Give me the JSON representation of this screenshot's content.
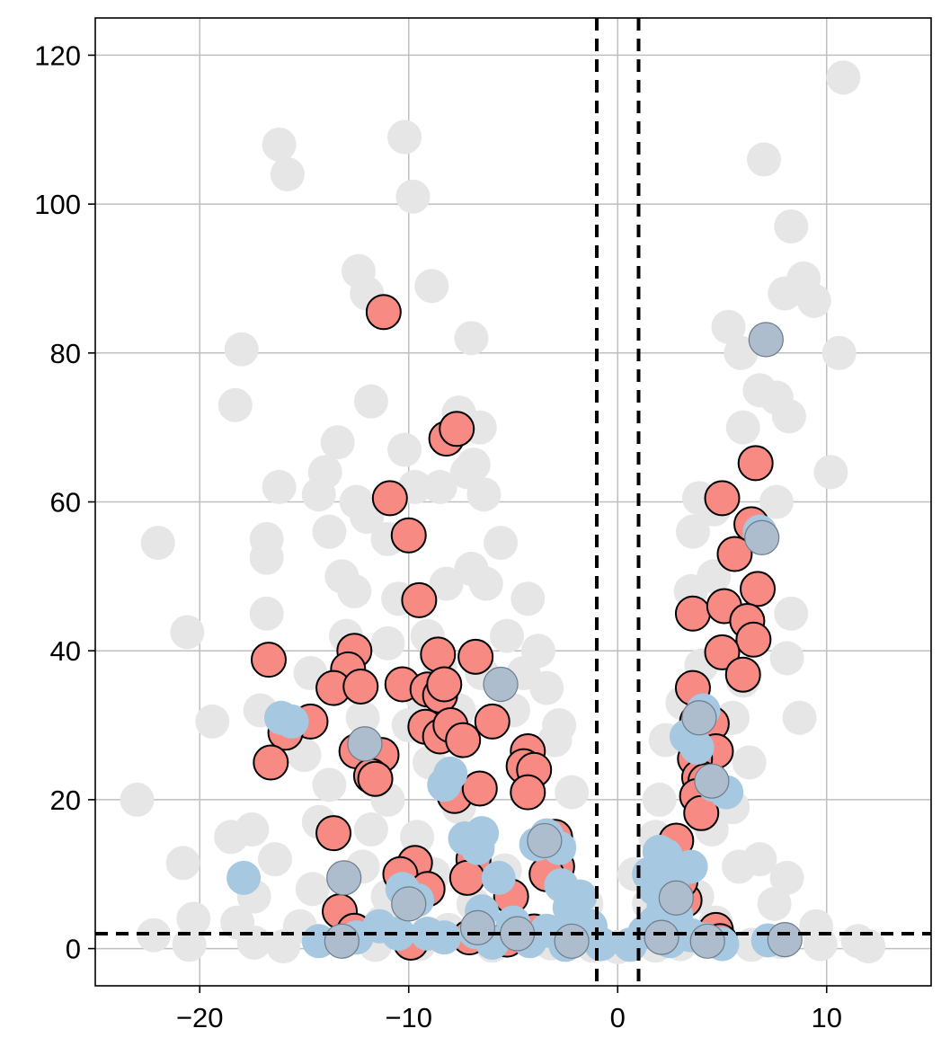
{
  "chart_data": {
    "type": "scatter",
    "title": "",
    "xlabel": "",
    "ylabel": "",
    "xlim": [
      -25,
      15
    ],
    "ylim": [
      -5,
      125
    ],
    "xticks": [
      -20,
      -10,
      0,
      10
    ],
    "xtick_labels": [
      "−20",
      "−10",
      "0",
      "10"
    ],
    "yticks": [
      0,
      20,
      40,
      60,
      80,
      100,
      120
    ],
    "ytick_labels": [
      "0",
      "20",
      "40",
      "60",
      "80",
      "100",
      "120"
    ],
    "grid": true,
    "legend": "none",
    "thresholds": {
      "x": [
        -1,
        1
      ],
      "y": [
        2
      ]
    },
    "colors": {
      "background_points": "#e6e6e6",
      "highlight_points": "#f78b83",
      "highlight_edge": "#000000",
      "blue_points": "#a6c8e0",
      "blue_edged_points": "#aebdce",
      "threshold_lines": "#000000",
      "grid": "#bfbfbf"
    },
    "series": [
      {
        "role": "background",
        "points": [
          [
            10.8,
            117
          ],
          [
            -16.2,
            108
          ],
          [
            -10.2,
            109
          ],
          [
            -15.8,
            104
          ],
          [
            -9.8,
            101
          ],
          [
            7.0,
            106
          ],
          [
            8.3,
            97
          ],
          [
            -12.4,
            91
          ],
          [
            -8.9,
            89
          ],
          [
            -12.0,
            88
          ],
          [
            8.9,
            90
          ],
          [
            9.4,
            87
          ],
          [
            8.0,
            88
          ],
          [
            5.3,
            83.5
          ],
          [
            -7.0,
            82
          ],
          [
            5.9,
            80
          ],
          [
            10.6,
            80
          ],
          [
            -18.0,
            80.5
          ],
          [
            -18.3,
            73
          ],
          [
            -11.8,
            73.5
          ],
          [
            6.8,
            75
          ],
          [
            7.6,
            74
          ],
          [
            8.2,
            71.5
          ],
          [
            -7.6,
            72
          ],
          [
            -6.6,
            70
          ],
          [
            6.0,
            70
          ],
          [
            -13.4,
            68
          ],
          [
            -10.2,
            67
          ],
          [
            -14.0,
            64
          ],
          [
            -6.9,
            65
          ],
          [
            -7.2,
            64
          ],
          [
            10.2,
            64
          ],
          [
            -16.2,
            62
          ],
          [
            -9.7,
            62
          ],
          [
            -8.5,
            62
          ],
          [
            -14.3,
            61
          ],
          [
            -12.5,
            60
          ],
          [
            -6.4,
            61
          ],
          [
            3.9,
            60.5
          ],
          [
            4.6,
            59
          ],
          [
            7.6,
            60
          ],
          [
            -12.0,
            58
          ],
          [
            -22.0,
            54.5
          ],
          [
            -16.8,
            55
          ],
          [
            -13.8,
            56
          ],
          [
            -11.0,
            55
          ],
          [
            -5.6,
            54.5
          ],
          [
            -16.8,
            52.5
          ],
          [
            3.6,
            56
          ],
          [
            4.6,
            50
          ],
          [
            -13.2,
            50
          ],
          [
            -12.6,
            48
          ],
          [
            -7.0,
            51
          ],
          [
            -6.3,
            49
          ],
          [
            -8.2,
            49
          ],
          [
            -10.5,
            47
          ],
          [
            -4.3,
            47
          ],
          [
            3.5,
            48
          ],
          [
            8.3,
            45
          ],
          [
            -16.8,
            45
          ],
          [
            -20.6,
            42.5
          ],
          [
            -13.0,
            42
          ],
          [
            -11.0,
            41
          ],
          [
            -9.1,
            42
          ],
          [
            -5.3,
            42
          ],
          [
            -3.8,
            40
          ],
          [
            8.1,
            39
          ],
          [
            -14.7,
            37
          ],
          [
            -8.5,
            38
          ],
          [
            -6.5,
            37
          ],
          [
            -4.5,
            37
          ],
          [
            -3.4,
            35
          ],
          [
            4.0,
            38
          ],
          [
            6.0,
            36
          ],
          [
            -9.4,
            34
          ],
          [
            -7.6,
            32
          ],
          [
            -5.0,
            32
          ],
          [
            -2.8,
            30
          ],
          [
            3.1,
            33
          ],
          [
            5.5,
            31
          ],
          [
            8.7,
            31
          ],
          [
            -19.4,
            30.5
          ],
          [
            -17.1,
            32
          ],
          [
            -12.2,
            31
          ],
          [
            -10.0,
            30
          ],
          [
            -3.0,
            28
          ],
          [
            -15.0,
            26
          ],
          [
            -9.0,
            25
          ],
          [
            2.3,
            28
          ],
          [
            4.3,
            24
          ],
          [
            6.3,
            25
          ],
          [
            -23.0,
            20
          ],
          [
            -13.8,
            22
          ],
          [
            -11.0,
            20
          ],
          [
            -7.6,
            19
          ],
          [
            -2.2,
            21
          ],
          [
            2.0,
            20
          ],
          [
            5.5,
            19
          ],
          [
            -14.3,
            17
          ],
          [
            -17.5,
            16
          ],
          [
            -18.5,
            15
          ],
          [
            -11.8,
            16
          ],
          [
            -9.6,
            15
          ],
          [
            -2.8,
            14
          ],
          [
            1.8,
            15
          ],
          [
            4.5,
            16
          ],
          [
            -20.8,
            11.5
          ],
          [
            -16.4,
            12
          ],
          [
            -12.2,
            11
          ],
          [
            -8.8,
            10
          ],
          [
            -5.4,
            10.5
          ],
          [
            0.8,
            10
          ],
          [
            2.8,
            10
          ],
          [
            5.8,
            11
          ],
          [
            6.8,
            12
          ],
          [
            8.1,
            9.5
          ],
          [
            -17.4,
            7
          ],
          [
            -14.6,
            8
          ],
          [
            -11.0,
            7
          ],
          [
            -6.9,
            6
          ],
          [
            -1.5,
            6
          ],
          [
            1.5,
            6
          ],
          [
            3.8,
            7
          ],
          [
            7.5,
            6
          ],
          [
            -20.3,
            4
          ],
          [
            -18.2,
            3.5
          ],
          [
            -15.2,
            3
          ],
          [
            -11.3,
            3.5
          ],
          [
            -8.1,
            2.5
          ],
          [
            -5.5,
            3
          ],
          [
            -2.0,
            3
          ],
          [
            2.0,
            3
          ],
          [
            4.7,
            3.5
          ],
          [
            9.5,
            3
          ],
          [
            -22.2,
            1.8
          ],
          [
            -20.5,
            0.5
          ],
          [
            -17.4,
            0.8
          ],
          [
            -16.0,
            0.3
          ],
          [
            -13.0,
            1.1
          ],
          [
            -11.6,
            0.5
          ],
          [
            -9.5,
            0.6
          ],
          [
            -6.0,
            0.4
          ],
          [
            -3.2,
            0.7
          ],
          [
            -1.2,
            0.4
          ],
          [
            0.0,
            0.2
          ],
          [
            0.6,
            0.6
          ],
          [
            1.8,
            0.4
          ],
          [
            3.0,
            0.6
          ],
          [
            5.0,
            0.8
          ],
          [
            6.4,
            0.5
          ],
          [
            7.8,
            0.9
          ],
          [
            9.7,
            0.6
          ],
          [
            11.5,
            1.0
          ],
          [
            12.0,
            0.3
          ]
        ]
      },
      {
        "role": "highlight",
        "points": [
          [
            -11.2,
            85.5
          ],
          [
            -8.2,
            68.5
          ],
          [
            -7.7,
            69.8
          ],
          [
            -10.9,
            60.5
          ],
          [
            -10.0,
            55.5
          ],
          [
            -9.5,
            46.8
          ],
          [
            -16.7,
            38.8
          ],
          [
            -12.6,
            40.0
          ],
          [
            -8.6,
            39.5
          ],
          [
            -6.8,
            39.2
          ],
          [
            -12.9,
            37.5
          ],
          [
            -13.6,
            35.0
          ],
          [
            -12.3,
            35.2
          ],
          [
            -10.3,
            35.5
          ],
          [
            -9.1,
            34.8
          ],
          [
            -8.5,
            34.0
          ],
          [
            -8.3,
            35.5
          ],
          [
            -14.7,
            30.5
          ],
          [
            -15.9,
            29.0
          ],
          [
            -6.0,
            30.5
          ],
          [
            -9.2,
            29.8
          ],
          [
            -8.5,
            28.5
          ],
          [
            -8.0,
            30.0
          ],
          [
            -7.4,
            28.0
          ],
          [
            -4.3,
            26.5
          ],
          [
            -12.5,
            26.5
          ],
          [
            -11.3,
            26.0
          ],
          [
            -11.8,
            23.2
          ],
          [
            -11.6,
            22.8
          ],
          [
            -4.5,
            24.5
          ],
          [
            -4.0,
            24.0
          ],
          [
            -16.6,
            25.0
          ],
          [
            -7.8,
            20.5
          ],
          [
            -6.6,
            21.5
          ],
          [
            -4.3,
            21.0
          ],
          [
            -13.6,
            15.5
          ],
          [
            -9.7,
            11.5
          ],
          [
            -10.4,
            10.0
          ],
          [
            -6.9,
            12.0
          ],
          [
            -7.2,
            9.5
          ],
          [
            -3.0,
            15.0
          ],
          [
            -9.1,
            8.0
          ],
          [
            -13.3,
            5.0
          ],
          [
            -2.9,
            11.0
          ],
          [
            -3.4,
            10.0
          ],
          [
            -5.1,
            7.0
          ],
          [
            -9.9,
            0.8
          ],
          [
            -7.1,
            1.5
          ],
          [
            -5.3,
            1.2
          ],
          [
            -4.0,
            2.3
          ],
          [
            -12.6,
            2.4
          ],
          [
            5.0,
            60.5
          ],
          [
            6.6,
            65.2
          ],
          [
            6.4,
            57.0
          ],
          [
            5.6,
            53.0
          ],
          [
            6.7,
            48.3
          ],
          [
            3.6,
            45.0
          ],
          [
            5.1,
            46.0
          ],
          [
            6.2,
            44.0
          ],
          [
            6.5,
            41.5
          ],
          [
            5.0,
            39.8
          ],
          [
            6.0,
            36.8
          ],
          [
            3.6,
            35.0
          ],
          [
            3.8,
            30.5
          ],
          [
            4.1,
            30.0
          ],
          [
            4.5,
            30.2
          ],
          [
            4.7,
            26.5
          ],
          [
            3.7,
            25.5
          ],
          [
            3.9,
            23.0
          ],
          [
            4.2,
            22.5
          ],
          [
            3.8,
            20.5
          ],
          [
            4.0,
            18.2
          ],
          [
            2.8,
            14.5
          ],
          [
            3.2,
            6.5
          ],
          [
            3.0,
            9.0
          ],
          [
            4.7,
            2.5
          ],
          [
            4.9,
            1.0
          ]
        ]
      },
      {
        "role": "blue",
        "points": [
          [
            -16.1,
            31.0
          ],
          [
            -15.6,
            30.5
          ],
          [
            -8.0,
            23.5
          ],
          [
            -8.3,
            22.0
          ],
          [
            -6.5,
            15.5
          ],
          [
            -7.3,
            14.8
          ],
          [
            -6.7,
            13.5
          ],
          [
            -3.9,
            14.0
          ],
          [
            -3.4,
            15.2
          ],
          [
            -3.2,
            14.2
          ],
          [
            -2.8,
            13.5
          ],
          [
            -17.9,
            9.5
          ],
          [
            -5.7,
            9.5
          ],
          [
            -2.7,
            8.5
          ],
          [
            -1.8,
            7.0
          ],
          [
            -2.3,
            5.5
          ],
          [
            -10.3,
            8.0
          ],
          [
            -9.6,
            6.5
          ],
          [
            -12.5,
            1.5
          ],
          [
            -11.4,
            3.0
          ],
          [
            -14.3,
            1.0
          ],
          [
            -9.1,
            2.0
          ],
          [
            -8.3,
            1.5
          ],
          [
            -6.8,
            2.2
          ],
          [
            -6.0,
            0.8
          ],
          [
            -5.0,
            3.5
          ],
          [
            -4.2,
            1.0
          ],
          [
            -3.4,
            2.4
          ],
          [
            -2.5,
            0.5
          ],
          [
            -1.7,
            1.8
          ],
          [
            -0.8,
            0.6
          ],
          [
            -1.3,
            3.0
          ],
          [
            -10.5,
            2.0
          ],
          [
            -6.5,
            5.0
          ],
          [
            -2.1,
            3.6
          ],
          [
            0.6,
            0.5
          ],
          [
            1.3,
            2.2
          ],
          [
            1.8,
            3.5
          ],
          [
            2.5,
            1.0
          ],
          [
            2.2,
            5.5
          ],
          [
            1.8,
            8.0
          ],
          [
            2.8,
            4.5
          ],
          [
            1.5,
            10.0
          ],
          [
            2.6,
            10.8
          ],
          [
            2.3,
            12.5
          ],
          [
            3.5,
            11.0
          ],
          [
            2.7,
            7.5
          ],
          [
            3.5,
            1.8
          ],
          [
            4.2,
            1.2
          ],
          [
            5.0,
            0.6
          ],
          [
            6.8,
            56.0
          ],
          [
            3.3,
            28.5
          ],
          [
            3.8,
            27.0
          ],
          [
            4.1,
            32.0
          ],
          [
            4.6,
            22.0
          ],
          [
            5.2,
            21.0
          ],
          [
            2.0,
            13.0
          ],
          [
            2.3,
            12.0
          ],
          [
            7.2,
            1.1
          ]
        ]
      },
      {
        "role": "blue-edged",
        "points": [
          [
            7.1,
            81.8
          ],
          [
            6.9,
            55.2
          ],
          [
            -5.6,
            35.5
          ],
          [
            -12.1,
            27.5
          ],
          [
            -13.1,
            9.5
          ],
          [
            -3.5,
            14.5
          ],
          [
            -13.2,
            1.0
          ],
          [
            -10.0,
            6.0
          ],
          [
            -6.7,
            2.8
          ],
          [
            -4.8,
            2.0
          ],
          [
            -2.2,
            1.0
          ],
          [
            2.1,
            1.5
          ],
          [
            4.5,
            22.5
          ],
          [
            3.9,
            31.0
          ],
          [
            4.3,
            1.0
          ],
          [
            8.0,
            1.2
          ],
          [
            2.8,
            6.8
          ]
        ]
      }
    ]
  }
}
